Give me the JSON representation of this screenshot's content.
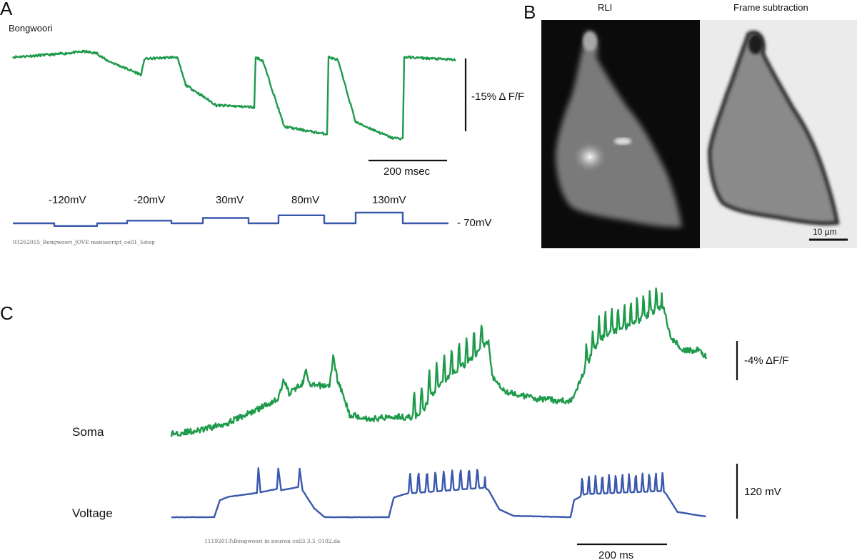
{
  "panels": {
    "a": {
      "letter": "A",
      "title": "Bongwoori",
      "scale_y_label": "-15% Δ F/F",
      "scale_x_label": "200 msec",
      "baseline_label": "- 70mV",
      "filename": "03262015_Bongwoori_JOVE manuscript_cell1_5step",
      "step_labels": [
        "-120mV",
        "-20mV",
        "30mV",
        "80mV",
        "130mV"
      ]
    },
    "b": {
      "letter": "B",
      "left_title": "RLI",
      "right_title": "Frame subtraction",
      "scalebar_label": "10 µm"
    },
    "c": {
      "letter": "C",
      "row1_label": "Soma",
      "row2_label": "Voltage",
      "scale_y1_label": "-4% ΔF/F",
      "scale_y2_label": "120 mV",
      "scale_x_label": "200 ms",
      "filename": "11192013\\Bongwoori in neuron cell3 3.5_0102.da"
    }
  },
  "colors": {
    "fluorescence": "#1e9a4b",
    "voltage": "#3a58ad"
  },
  "chart_data": [
    {
      "type": "line",
      "panel": "A",
      "series": [
        {
          "name": "",
          "color": "#1e9a4b",
          "points": [
            [
              0,
              0
            ],
            [
              60,
              0.3
            ],
            [
              100,
              0.6
            ],
            [
              118,
              0.4
            ],
            [
              130,
              -0.3
            ],
            [
              170,
              -1.6
            ],
            [
              180,
              -1.9
            ],
            [
              184,
              -0.2
            ],
            [
              230,
              0
            ],
            [
              242,
              -3
            ],
            [
              285,
              -5.2
            ],
            [
              338,
              -5.4
            ],
            [
              340,
              0
            ],
            [
              350,
              -0.4
            ],
            [
              380,
              -7.5
            ],
            [
              430,
              -8.2
            ],
            [
              440,
              -8.3
            ],
            [
              442,
              0
            ],
            [
              455,
              -0.3
            ],
            [
              480,
              -7
            ],
            [
              530,
              -8.7
            ],
            [
              546,
              -8.8
            ],
            [
              548,
              0
            ],
            [
              620,
              -0.3
            ]
          ]
        },
        {
          "name": "",
          "color": "#3a58ad",
          "points": [
            [
              0,
              -70
            ],
            [
              58,
              -70
            ],
            [
              58,
              -120
            ],
            [
              118,
              -120
            ],
            [
              118,
              -70
            ],
            [
              160,
              -70
            ],
            [
              160,
              -20
            ],
            [
              222,
              -20
            ],
            [
              222,
              -70
            ],
            [
              266,
              -70
            ],
            [
              266,
              30
            ],
            [
              330,
              30
            ],
            [
              330,
              -70
            ],
            [
              372,
              -70
            ],
            [
              372,
              80
            ],
            [
              436,
              80
            ],
            [
              436,
              -70
            ],
            [
              480,
              -70
            ],
            [
              480,
              130
            ],
            [
              546,
              130
            ],
            [
              546,
              -70
            ],
            [
              610,
              -70
            ]
          ]
        }
      ]
    },
    {
      "type": "line",
      "panel": "C",
      "series": [
        {
          "name": "Soma",
          "color": "#1e9a4b",
          "points": [
            [
              0,
              0
            ],
            [
              40,
              0.2
            ],
            [
              80,
              0.7
            ],
            [
              120,
              1.5
            ],
            [
              150,
              2.2
            ],
            [
              158,
              3.4
            ],
            [
              165,
              2.5
            ],
            [
              185,
              3.2
            ],
            [
              188,
              4.0
            ],
            [
              194,
              3.0
            ],
            [
              210,
              3.0
            ],
            [
              222,
              3.0
            ],
            [
              227,
              4.8
            ],
            [
              233,
              3.4
            ],
            [
              250,
              1.2
            ],
            [
              280,
              0.9
            ],
            [
              310,
              1.1
            ],
            [
              340,
              1.0
            ],
            [
              355,
              1.5
            ],
            [
              362,
              2.3
            ],
            [
              390,
              3.6
            ],
            [
              420,
              4.6
            ],
            [
              445,
              5.8
            ],
            [
              450,
              3.6
            ],
            [
              470,
              2.6
            ],
            [
              510,
              2.2
            ],
            [
              560,
              2.0
            ],
            [
              582,
              4.2
            ],
            [
              600,
              5.9
            ],
            [
              650,
              6.9
            ],
            [
              690,
              8.0
            ],
            [
              700,
              6.0
            ],
            [
              720,
              5.2
            ],
            [
              740,
              5.2
            ],
            [
              750,
              4.8
            ]
          ]
        },
        {
          "name": "Voltage",
          "color": "#3a58ad",
          "points": [
            [
              0,
              -70
            ],
            [
              60,
              -70
            ],
            [
              68,
              -44
            ],
            [
              80,
              -39
            ],
            [
              120,
              -33
            ],
            [
              122,
              5
            ],
            [
              125,
              -32
            ],
            [
              148,
              -27
            ],
            [
              150,
              4
            ],
            [
              154,
              -29
            ],
            [
              178,
              -24
            ],
            [
              180,
              4
            ],
            [
              184,
              -29
            ],
            [
              200,
              -56
            ],
            [
              215,
              -70
            ],
            [
              305,
              -70
            ],
            [
              312,
              -40
            ],
            [
              330,
              -34
            ],
            [
              440,
              -25
            ],
            [
              445,
              -29
            ],
            [
              460,
              -58
            ],
            [
              480,
              -68
            ],
            [
              560,
              -70
            ],
            [
              565,
              -44
            ],
            [
              580,
              -35
            ],
            [
              690,
              -30
            ],
            [
              695,
              -36
            ],
            [
              710,
              -62
            ],
            [
              750,
              -69
            ]
          ]
        }
      ]
    }
  ]
}
